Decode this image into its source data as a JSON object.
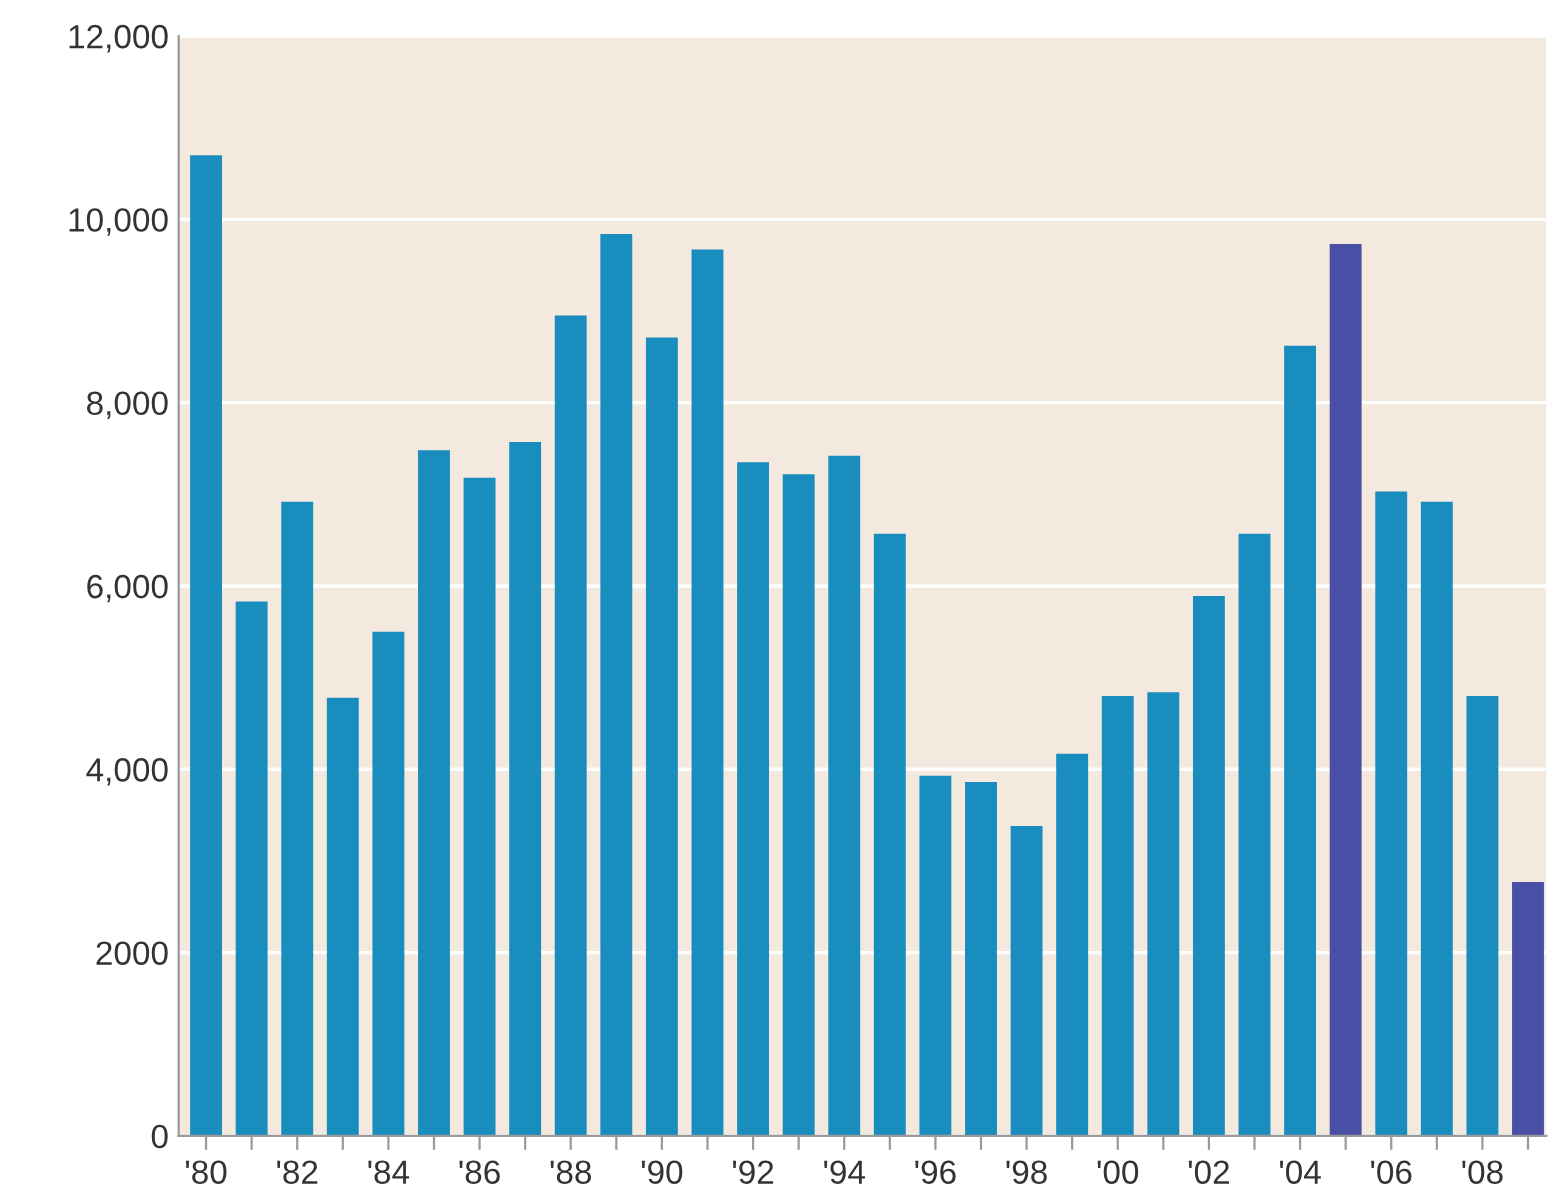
{
  "chart_data": {
    "type": "bar",
    "categories": [
      "'80",
      null,
      "'82",
      null,
      "'84",
      null,
      "'86",
      null,
      "'88",
      null,
      "'90",
      null,
      "'92",
      null,
      "'94",
      null,
      "'96",
      null,
      "'98",
      null,
      "'00",
      null,
      "'02",
      null,
      "'04",
      null,
      "'06",
      null,
      "'08",
      null
    ],
    "values": [
      10700,
      5830,
      6920,
      4780,
      5500,
      7480,
      7180,
      7570,
      8950,
      9840,
      8710,
      9670,
      7350,
      7220,
      7420,
      6570,
      3930,
      3860,
      3380,
      4170,
      4800,
      4840,
      5890,
      6570,
      8620,
      9730,
      7030,
      6920,
      4800,
      2770
    ],
    "colors": [
      "#1a8dbf",
      "#1a8dbf",
      "#1a8dbf",
      "#1a8dbf",
      "#1a8dbf",
      "#1a8dbf",
      "#1a8dbf",
      "#1a8dbf",
      "#1a8dbf",
      "#1a8dbf",
      "#1a8dbf",
      "#1a8dbf",
      "#1a8dbf",
      "#1a8dbf",
      "#1a8dbf",
      "#1a8dbf",
      "#1a8dbf",
      "#1a8dbf",
      "#1a8dbf",
      "#1a8dbf",
      "#1a8dbf",
      "#1a8dbf",
      "#1a8dbf",
      "#1a8dbf",
      "#1a8dbf",
      "#4a4fa6",
      "#1a8dbf",
      "#1a8dbf",
      "#1a8dbf",
      "#4a4fa6"
    ],
    "ylim": [
      0,
      12000
    ],
    "yticks": [
      0,
      {
        "value": 2000,
        "label": "2000"
      },
      {
        "value": 4000,
        "label": "4,000"
      },
      {
        "value": 6000,
        "label": "6,000"
      },
      {
        "value": 8000,
        "label": "8,000"
      },
      {
        "value": 10000,
        "label": "10,000"
      },
      {
        "value": 12000,
        "label": "12,000"
      }
    ],
    "grid": "y"
  }
}
